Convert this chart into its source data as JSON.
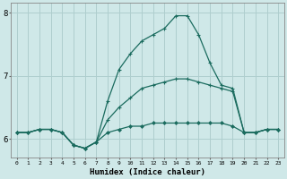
{
  "xlabel": "Humidex (Indice chaleur)",
  "hours": [
    0,
    1,
    2,
    3,
    4,
    5,
    6,
    7,
    8,
    9,
    10,
    11,
    12,
    13,
    14,
    15,
    16,
    17,
    18,
    19,
    20,
    21,
    22,
    23
  ],
  "line_flat": [
    6.1,
    6.1,
    6.15,
    6.15,
    6.1,
    5.9,
    5.85,
    5.95,
    6.1,
    6.15,
    6.2,
    6.2,
    6.25,
    6.25,
    6.25,
    6.25,
    6.25,
    6.25,
    6.25,
    6.2,
    6.1,
    6.1,
    6.15,
    6.15
  ],
  "line_mid": [
    6.1,
    6.1,
    6.15,
    6.15,
    6.1,
    5.9,
    5.85,
    5.95,
    6.3,
    6.5,
    6.65,
    6.8,
    6.85,
    6.9,
    6.95,
    6.95,
    6.9,
    6.85,
    6.8,
    6.75,
    6.1,
    6.1,
    6.15,
    6.15
  ],
  "line_high": [
    6.1,
    6.1,
    6.15,
    6.15,
    6.1,
    5.9,
    5.85,
    5.95,
    6.6,
    7.1,
    7.35,
    7.55,
    7.65,
    7.75,
    7.95,
    7.95,
    7.65,
    7.2,
    6.85,
    6.8,
    6.1,
    6.1,
    6.15,
    6.15
  ],
  "bg_color": "#cfe8e8",
  "line_color": "#1a6b5e",
  "grid_color": "#aecece",
  "ylim_min": 5.7,
  "ylim_max": 8.15,
  "ytick_positions": [
    6,
    7,
    8
  ],
  "ytick_labels": [
    "6",
    "7",
    "8"
  ]
}
